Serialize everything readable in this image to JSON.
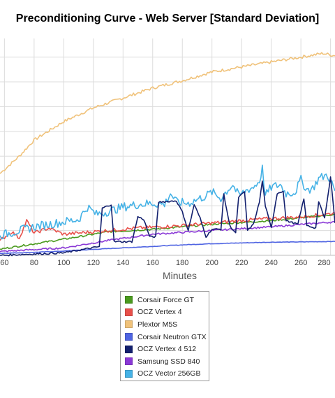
{
  "chart_data": {
    "type": "line",
    "title": "Preconditioning Curve - Web Server [Standard Deviation]",
    "xlabel": "Minutes",
    "ylabel": "",
    "xlim": [
      57,
      283
    ],
    "ylim": [
      0,
      8.75
    ],
    "x_ticks": [
      60,
      80,
      100,
      120,
      140,
      160,
      180,
      200,
      220,
      240,
      260,
      280
    ],
    "grid": true,
    "legend_position": "bottom",
    "series": [
      {
        "name": "Corsair Force GT",
        "color": "#4a9a1e",
        "points": [
          [
            57,
            0.25
          ],
          [
            100,
            0.65
          ],
          [
            130,
            0.95
          ],
          [
            160,
            1.05
          ],
          [
            200,
            1.25
          ],
          [
            240,
            1.4
          ],
          [
            283,
            1.65
          ]
        ]
      },
      {
        "name": "OCZ Vertex 4",
        "color": "#e8504a",
        "points": [
          [
            57,
            0.6
          ],
          [
            65,
            0.95
          ],
          [
            70,
            0.7
          ],
          [
            75,
            1.4
          ],
          [
            80,
            0.9
          ],
          [
            90,
            1.1
          ],
          [
            100,
            0.85
          ],
          [
            120,
            0.95
          ],
          [
            150,
            1.1
          ],
          [
            180,
            1.2
          ],
          [
            200,
            1.3
          ],
          [
            230,
            1.45
          ],
          [
            260,
            1.55
          ],
          [
            283,
            1.7
          ]
        ]
      },
      {
        "name": "Plextor M5S",
        "color": "#f0c27a",
        "points": [
          [
            57,
            3.3
          ],
          [
            70,
            4.0
          ],
          [
            80,
            4.65
          ],
          [
            100,
            5.4
          ],
          [
            120,
            5.95
          ],
          [
            140,
            6.35
          ],
          [
            160,
            6.75
          ],
          [
            180,
            7.05
          ],
          [
            200,
            7.4
          ],
          [
            220,
            7.6
          ],
          [
            240,
            7.8
          ],
          [
            260,
            8.0
          ],
          [
            275,
            8.15
          ],
          [
            283,
            8.05
          ]
        ]
      },
      {
        "name": "Corsair Neutron GTX",
        "color": "#4f64e2",
        "points": [
          [
            57,
            0.08
          ],
          [
            80,
            0.12
          ],
          [
            100,
            0.17
          ],
          [
            120,
            0.24
          ],
          [
            140,
            0.3
          ],
          [
            160,
            0.36
          ],
          [
            180,
            0.42
          ],
          [
            200,
            0.47
          ],
          [
            220,
            0.5
          ],
          [
            240,
            0.53
          ],
          [
            260,
            0.54
          ],
          [
            283,
            0.56
          ]
        ]
      },
      {
        "name": "OCZ Vertex 4 512",
        "color": "#13206e",
        "points": [
          [
            57,
            0.0
          ],
          [
            100,
            0.1
          ],
          [
            124,
            0.35
          ],
          [
            126,
            1.9
          ],
          [
            132,
            2.05
          ],
          [
            134,
            0.55
          ],
          [
            146,
            0.55
          ],
          [
            150,
            1.55
          ],
          [
            154,
            1.45
          ],
          [
            158,
            0.75
          ],
          [
            162,
            0.75
          ],
          [
            164,
            2.15
          ],
          [
            176,
            2.2
          ],
          [
            180,
            1.75
          ],
          [
            184,
            1.0
          ],
          [
            188,
            2.05
          ],
          [
            192,
            1.5
          ],
          [
            196,
            0.75
          ],
          [
            200,
            1.05
          ],
          [
            206,
            1.05
          ],
          [
            208,
            2.45
          ],
          [
            212,
            1.2
          ],
          [
            216,
            0.9
          ],
          [
            218,
            2.35
          ],
          [
            222,
            2.55
          ],
          [
            224,
            1.0
          ],
          [
            228,
            1.25
          ],
          [
            232,
            2.15
          ],
          [
            234,
            3.0
          ],
          [
            236,
            2.0
          ],
          [
            240,
            1.1
          ],
          [
            244,
            2.5
          ],
          [
            248,
            2.6
          ],
          [
            250,
            1.4
          ],
          [
            258,
            1.25
          ],
          [
            262,
            2.3
          ],
          [
            264,
            1.2
          ],
          [
            270,
            1.1
          ],
          [
            272,
            2.15
          ],
          [
            276,
            1.5
          ],
          [
            278,
            2.3
          ],
          [
            280,
            3.2
          ],
          [
            283,
            1.3
          ]
        ]
      },
      {
        "name": "Samsung SSD 840",
        "color": "#8a38d6",
        "points": [
          [
            57,
            0.15
          ],
          [
            100,
            0.3
          ],
          [
            130,
            0.6
          ],
          [
            160,
            0.85
          ],
          [
            200,
            1.0
          ],
          [
            240,
            1.15
          ],
          [
            283,
            1.35
          ]
        ]
      },
      {
        "name": "OCZ Vector 256GB",
        "color": "#45b2e6",
        "points": [
          [
            57,
            0.8
          ],
          [
            80,
            1.15
          ],
          [
            100,
            1.35
          ],
          [
            110,
            1.45
          ],
          [
            116,
            1.95
          ],
          [
            122,
            1.65
          ],
          [
            132,
            1.8
          ],
          [
            140,
            1.95
          ],
          [
            150,
            2.05
          ],
          [
            160,
            2.1
          ],
          [
            168,
            2.05
          ],
          [
            172,
            2.5
          ],
          [
            176,
            2.15
          ],
          [
            184,
            2.1
          ],
          [
            190,
            2.25
          ],
          [
            196,
            2.4
          ],
          [
            200,
            2.55
          ],
          [
            206,
            2.3
          ],
          [
            210,
            2.6
          ],
          [
            214,
            2.85
          ],
          [
            218,
            2.4
          ],
          [
            224,
            2.65
          ],
          [
            228,
            2.75
          ],
          [
            232,
            3.0
          ],
          [
            234,
            3.5
          ],
          [
            236,
            2.4
          ],
          [
            240,
            2.75
          ],
          [
            246,
            2.85
          ],
          [
            250,
            2.5
          ],
          [
            256,
            2.55
          ],
          [
            260,
            3.05
          ],
          [
            264,
            2.65
          ],
          [
            268,
            2.7
          ],
          [
            272,
            3.1
          ],
          [
            278,
            3.25
          ],
          [
            283,
            2.6
          ]
        ]
      }
    ]
  }
}
